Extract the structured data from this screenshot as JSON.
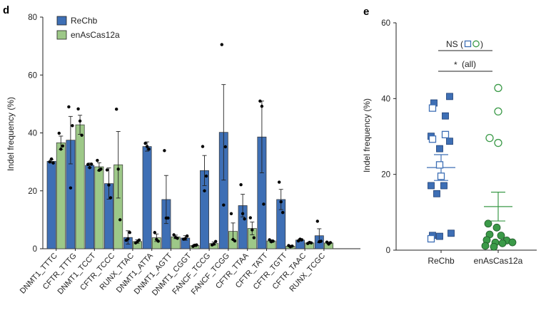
{
  "chart_data": [
    {
      "panel": "d",
      "type": "bar",
      "title": "",
      "xlabel": "",
      "ylabel": "Indel frequency (%)",
      "ylim": [
        0,
        80
      ],
      "yticks": [
        0,
        20,
        40,
        60,
        80
      ],
      "legend_position": "top-left",
      "categories": [
        "DNMT1_TTTC",
        "CFTR_TTTG",
        "DNMT1_TCCT",
        "CFTR_TCCC",
        "RUNX_TTAC",
        "DNMT1_ATTA",
        "DNMT1_AGTT",
        "DNMT1_CGGT",
        "FANCF_TCCG",
        "FANCF_TCGG",
        "CFTR_TTAA",
        "CFTR_TATT",
        "CFTR_TGTT",
        "CFTR_TAAC",
        "RUNX_TCGC"
      ],
      "series": [
        {
          "name": "ReChb",
          "color": "#3e6fb5",
          "values": [
            30.2,
            37.5,
            28.8,
            22.5,
            3.9,
            35.3,
            17.0,
            3.7,
            27.0,
            40.2,
            14.9,
            38.6,
            17.0,
            3.0,
            4.5
          ],
          "errors": [
            0.6,
            8.2,
            0.8,
            5.4,
            2.3,
            1.6,
            8.3,
            0.8,
            5.2,
            16.5,
            3.9,
            12.4,
            3.5,
            0.4,
            2.4
          ],
          "points": [
            [
              30.0,
              31.0,
              29.6
            ],
            [
              49.0,
              21.0,
              42.5
            ],
            [
              29.1,
              28.0,
              29.2
            ],
            [
              27.2,
              22.0,
              17.6
            ],
            [
              2.9,
              3.4,
              5.6
            ],
            [
              36.4,
              35.3,
              34.4
            ],
            [
              33.9,
              10.6,
              10.6
            ],
            [
              3.3,
              3.5,
              4.4
            ],
            [
              35.3,
              20.0,
              25.1
            ],
            [
              70.5,
              15.1,
              35.2
            ],
            [
              22.1,
              12.1,
              10.3
            ],
            [
              51.0,
              49.2,
              15.4
            ],
            [
              23.0,
              16.2,
              12.5
            ],
            [
              2.7,
              3.3,
              3.1
            ],
            [
              9.5,
              2.4,
              2.6
            ]
          ]
        },
        {
          "name": "enAsCas12a",
          "color": "#9dc888",
          "values": [
            36.6,
            42.8,
            28.3,
            29.0,
            2.5,
            3.8,
            4.1,
            1.1,
            1.8,
            6.0,
            7.0,
            2.7,
            0.9,
            2.0,
            2.0
          ],
          "errors": [
            2.3,
            3.3,
            1.4,
            11.5,
            0.6,
            1.3,
            0.6,
            0.4,
            0.5,
            2.9,
            2.2,
            0.4,
            0.3,
            0.3,
            0.3
          ],
          "points": [
            [
              39.9,
              34.4,
              35.5
            ],
            [
              48.3,
              44.1,
              39.2
            ],
            [
              30.5,
              27.1,
              27.5
            ],
            [
              48.2,
              27.5,
              10.0
            ],
            [
              2.0,
              2.4,
              3.0
            ],
            [
              5.6,
              3.2,
              2.6
            ],
            [
              4.8,
              3.9,
              3.6
            ],
            [
              0.8,
              1.2,
              1.3
            ],
            [
              1.3,
              1.6,
              2.5
            ],
            [
              12.1,
              3.2,
              2.7
            ],
            [
              10.7,
              6.5,
              3.8
            ],
            [
              3.1,
              2.4,
              2.6
            ],
            [
              1.1,
              0.7,
              0.9
            ],
            [
              1.8,
              2.2,
              2.0
            ],
            [
              2.3,
              1.6,
              2.1
            ]
          ]
        }
      ]
    },
    {
      "panel": "e",
      "type": "scatter",
      "title": "",
      "xlabel": "",
      "ylabel": "Indel frequency (%)",
      "ylim": [
        0,
        60
      ],
      "yticks": [
        0,
        20,
        40,
        60
      ],
      "categories": [
        "ReChb",
        "enAsCas12a"
      ],
      "series": [
        {
          "name": "ReChb",
          "color": "#3e6fb5",
          "mean": 21.8,
          "sem_upper": 25.2,
          "sem_lower": 18.4,
          "filled_points": [
            40.2,
            38.6,
            35.3,
            30.2,
            28.8,
            27.0,
            17.0,
            17.0,
            14.9,
            4.5,
            3.9,
            3.7
          ],
          "open_points": [
            37.5,
            30.5,
            29.3,
            22.5,
            3.0,
            19.5
          ]
        },
        {
          "name": "enAsCas12a",
          "color": "#3b9a48",
          "mean": 11.5,
          "sem_upper": 15.3,
          "sem_lower": 7.7,
          "filled_points": [
            7.0,
            6.0,
            4.1,
            3.8,
            2.7,
            2.5,
            2.0,
            2.0,
            1.8,
            1.1,
            0.9
          ],
          "open_points": [
            42.8,
            36.6,
            29.6,
            28.3
          ]
        }
      ],
      "annotations": [
        {
          "text": "NS (",
          "note": "comparison of open symbols"
        },
        {
          "text": "*",
          "label": "(all)"
        }
      ]
    }
  ],
  "labels": {
    "panel_d": "d",
    "panel_e": "e",
    "legend_rechb": "ReChb",
    "legend_enas": "enAsCas12a",
    "ns_prefix": "NS (",
    "ns_suffix": ")",
    "star": "*",
    "all_label": "(all)"
  }
}
